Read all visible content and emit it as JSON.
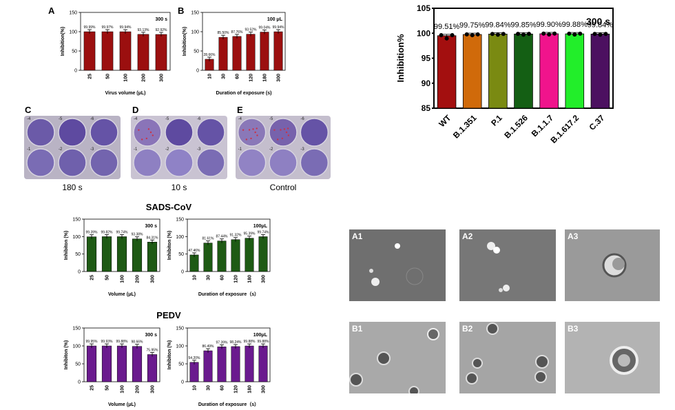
{
  "panel_labels": {
    "A": "A",
    "B": "B",
    "C": "C",
    "D": "D",
    "E": "E"
  },
  "colors": {
    "dark_red": "#9b0f0f",
    "green": "#1e5a14",
    "purple": "#6a1a8e",
    "variants": [
      "#a30f0f",
      "#d06a0a",
      "#7a8a12",
      "#145f14",
      "#f0148c",
      "#22ee2a",
      "#4c1060"
    ]
  },
  "plate_captions": [
    "180 s",
    "10 s",
    "Control"
  ],
  "plate_well_labels": [
    "-4",
    "-5",
    "-6",
    "-1",
    "-2",
    "-3"
  ],
  "section_titles": {
    "sads": "SADS-CoV",
    "pedv": "PEDV"
  },
  "micrographs": [
    "A1",
    "A2",
    "A3",
    "B1",
    "B2",
    "B3"
  ],
  "chart_data": [
    {
      "id": "A",
      "type": "bar",
      "categories": [
        "25",
        "50",
        "100",
        "200",
        "300"
      ],
      "values": [
        99.99,
        99.97,
        99.94,
        93.13,
        92.92
      ],
      "data_labels": [
        "99.99%",
        "99.97%",
        "99.94%",
        "93.13%",
        "92.92%"
      ],
      "annotation": "300 s",
      "xlabel": "Virus volume (μL)",
      "ylabel": "Inhibition(%)",
      "ylim": [
        0,
        150
      ],
      "yticks": [
        "0",
        "50",
        "100",
        "150"
      ],
      "color": "#9b0f0f"
    },
    {
      "id": "B",
      "type": "bar",
      "categories": [
        "10",
        "30",
        "60",
        "120",
        "180",
        "300"
      ],
      "values": [
        28.66,
        85.5,
        87.76,
        93.52,
        99.04,
        99.94
      ],
      "data_labels": [
        "28.66%",
        "85.50%",
        "87.76%",
        "93.52%",
        "99.04%",
        "99.94%"
      ],
      "annotation": "100 μL",
      "xlabel": "Duration of exposure (s)",
      "ylabel": "Inhibition(%)",
      "ylim": [
        0,
        150
      ],
      "yticks": [
        "0",
        "50",
        "100",
        "150"
      ],
      "color": "#9b0f0f"
    },
    {
      "id": "V",
      "type": "bar",
      "categories": [
        "WT",
        "B.1.351",
        "P.1",
        "B.1.526",
        "B.1.1.7",
        "B.1.617.2",
        "C.37"
      ],
      "values": [
        99.51,
        99.75,
        99.84,
        99.85,
        99.9,
        99.88,
        99.84
      ],
      "data_labels": [
        "99.51%",
        "99.75%",
        "99.84%",
        "99.85%",
        "99.90%",
        "99.88%",
        "99.84%"
      ],
      "annotation": "300 s",
      "ylabel": "Inhibition%",
      "ylim": [
        85,
        105
      ],
      "yticks": [
        "85",
        "90",
        "95",
        "100",
        "105"
      ]
    },
    {
      "id": "S1",
      "type": "bar",
      "categories": [
        "25",
        "50",
        "100",
        "200",
        "300"
      ],
      "values": [
        99.39,
        99.82,
        99.74,
        93.38,
        84.31
      ],
      "data_labels": [
        "99.39%",
        "99.82%",
        "99.74%",
        "93.38%",
        "84.31%"
      ],
      "annotation": "300 s",
      "xlabel": "Volume (μL)",
      "ylabel": "Inhibiton (%)",
      "ylim": [
        0,
        150
      ],
      "yticks": [
        "0",
        "50",
        "100",
        "150"
      ],
      "color": "#1e5a14"
    },
    {
      "id": "S2",
      "type": "bar",
      "categories": [
        "10",
        "30",
        "60",
        "120",
        "180",
        "300"
      ],
      "values": [
        47.46,
        81.61,
        87.44,
        91.32,
        95.39,
        99.74
      ],
      "data_labels": [
        "47.46%",
        "81.61%",
        "87.44%",
        "91.32%",
        "95.39%",
        "99.74%"
      ],
      "annotation": "100μL",
      "xlabel": "Duration of exposure（s）",
      "ylabel": "Inhibiton (%)",
      "ylim": [
        0,
        150
      ],
      "yticks": [
        "0",
        "50",
        "100",
        "150"
      ],
      "color": "#1e5a14"
    },
    {
      "id": "P1",
      "type": "bar",
      "categories": [
        "25",
        "50",
        "100",
        "200",
        "300"
      ],
      "values": [
        99.95,
        99.93,
        99.88,
        98.66,
        75.95
      ],
      "data_labels": [
        "99.95%",
        "99.93%",
        "99.88%",
        "98.66%",
        "75.95%"
      ],
      "annotation": "300 s",
      "xlabel": "Volume (μL)",
      "ylabel": "Inhibiton (%)",
      "ylim": [
        0,
        150
      ],
      "yticks": [
        "0",
        "50",
        "100",
        "150"
      ],
      "color": "#6a1a8e"
    },
    {
      "id": "P2",
      "type": "bar",
      "categories": [
        "10",
        "30",
        "60",
        "120",
        "180",
        "300"
      ],
      "values": [
        54.2,
        86.49,
        97.39,
        98.24,
        99.88,
        99.88
      ],
      "data_labels": [
        "54.20%",
        "86.49%",
        "97.39%",
        "98.24%",
        "99.88%",
        "99.88%"
      ],
      "annotation": "100μL",
      "xlabel": "Duration of exposure（s）",
      "ylabel": "Inhibiton (%)",
      "ylim": [
        0,
        150
      ],
      "yticks": [
        "0",
        "50",
        "100",
        "150"
      ],
      "color": "#6a1a8e"
    }
  ]
}
